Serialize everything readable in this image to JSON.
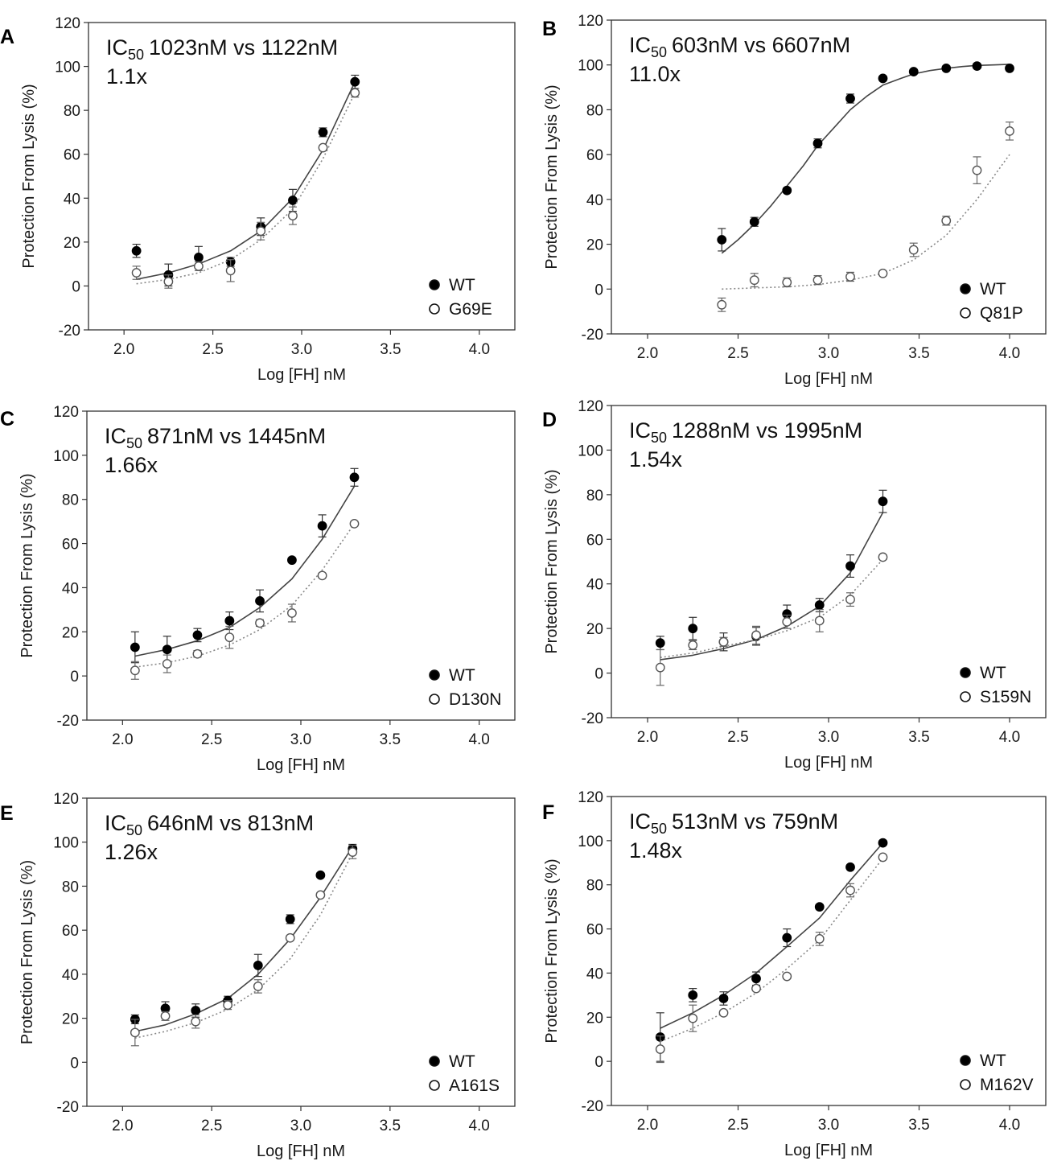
{
  "chart_data": [
    {
      "panel": "A",
      "type": "scatter",
      "ic_prefix": "IC",
      "ic_sub": "50",
      "ic_text": "1023nM vs 1122nM",
      "fold": "1.1x",
      "xlabel": "Log [FH] nM",
      "ylabel": "Protection From Lysis (%)",
      "xlim": [
        1.8,
        4.2
      ],
      "ylim": [
        -20,
        120
      ],
      "xticks": [
        "2.0",
        "2.5",
        "3.0",
        "3.5",
        "4.0"
      ],
      "yticks": [
        "-20",
        "0",
        "20",
        "40",
        "60",
        "80",
        "100",
        "120"
      ],
      "legend": "bottom-right",
      "series": [
        {
          "name": "WT",
          "marker": "filled",
          "line": "solid",
          "x": [
            2.07,
            2.25,
            2.42,
            2.6,
            2.77,
            2.95,
            3.12,
            3.3
          ],
          "y": [
            16,
            5,
            13,
            11,
            27,
            39,
            70,
            93
          ],
          "err": [
            3,
            5,
            5,
            2,
            4,
            5,
            2,
            3
          ],
          "fit_x": [
            2.07,
            2.25,
            2.42,
            2.6,
            2.77,
            2.95,
            3.12,
            3.3
          ],
          "fit_y": [
            3,
            6,
            10,
            16,
            25,
            40,
            62,
            93
          ]
        },
        {
          "name": "G69E",
          "marker": "open",
          "line": "dotted",
          "x": [
            2.07,
            2.25,
            2.42,
            2.6,
            2.77,
            2.95,
            3.12,
            3.3
          ],
          "y": [
            6,
            2,
            9,
            7,
            25,
            32,
            63,
            88
          ],
          "err": [
            3,
            3,
            2,
            5,
            4,
            4,
            1,
            2
          ],
          "fit_x": [
            2.07,
            2.25,
            2.42,
            2.6,
            2.77,
            2.95,
            3.12,
            3.3
          ],
          "fit_y": [
            1,
            3,
            6,
            12,
            21,
            35,
            58,
            88
          ]
        }
      ]
    },
    {
      "panel": "B",
      "type": "scatter",
      "ic_prefix": "IC",
      "ic_sub": "50",
      "ic_text": "603nM vs 6607nM",
      "fold": "11.0x",
      "xlabel": "Log [FH] nM",
      "ylabel": "Protection From Lysis (%)",
      "xlim": [
        1.8,
        4.2
      ],
      "ylim": [
        -20,
        120
      ],
      "xticks": [
        "2.0",
        "2.5",
        "3.0",
        "3.5",
        "4.0"
      ],
      "yticks": [
        "-20",
        "0",
        "20",
        "40",
        "60",
        "80",
        "100",
        "120"
      ],
      "legend": "bottom-right",
      "series": [
        {
          "name": "WT",
          "marker": "filled",
          "line": "solid",
          "x": [
            2.41,
            2.59,
            2.77,
            2.94,
            3.12,
            3.3,
            3.47,
            3.65,
            3.82,
            4.0
          ],
          "y": [
            22,
            30,
            44,
            65,
            85,
            94,
            97,
            98.5,
            99.5,
            98.5
          ],
          "err": [
            5,
            2,
            1,
            2,
            2,
            1,
            1,
            1,
            1,
            1
          ],
          "fit_x": [
            2.41,
            2.5,
            2.59,
            2.68,
            2.77,
            2.86,
            2.94,
            3.03,
            3.12,
            3.21,
            3.3,
            3.4,
            3.47,
            3.56,
            3.65,
            3.74,
            3.82,
            3.91,
            4.0
          ],
          "fit_y": [
            16,
            22,
            29,
            37,
            46,
            55,
            64,
            72,
            80,
            86,
            91,
            94,
            96,
            97.5,
            98.5,
            99.3,
            99.8,
            100,
            100.3
          ]
        },
        {
          "name": "Q81P",
          "marker": "open",
          "line": "dotted",
          "x": [
            2.41,
            2.59,
            2.77,
            2.94,
            3.12,
            3.3,
            3.47,
            3.65,
            3.82,
            4.0
          ],
          "y": [
            -7,
            4,
            3,
            4,
            5.5,
            7,
            17.5,
            30.5,
            53,
            70.5
          ],
          "err": [
            3,
            3,
            2,
            2,
            2,
            1,
            3,
            2,
            6,
            4
          ],
          "fit_x": [
            2.41,
            2.59,
            2.77,
            2.94,
            3.12,
            3.3,
            3.47,
            3.65,
            3.82,
            4.0
          ],
          "fit_y": [
            0,
            0.5,
            1,
            2,
            4,
            7,
            13,
            24,
            40,
            60
          ]
        }
      ]
    },
    {
      "panel": "C",
      "type": "scatter",
      "ic_prefix": "IC",
      "ic_sub": "50",
      "ic_text": "871nM vs 1445nM",
      "fold": "1.66x",
      "xlabel": "Log [FH] nM",
      "ylabel": "Protection From Lysis (%)",
      "xlim": [
        1.8,
        4.2
      ],
      "ylim": [
        -20,
        120
      ],
      "xticks": [
        "2.0",
        "2.5",
        "3.0",
        "3.5",
        "4.0"
      ],
      "yticks": [
        "-20",
        "0",
        "20",
        "40",
        "60",
        "80",
        "100",
        "120"
      ],
      "legend": "bottom-right",
      "series": [
        {
          "name": "WT",
          "marker": "filled",
          "line": "solid",
          "x": [
            2.07,
            2.25,
            2.42,
            2.6,
            2.77,
            2.95,
            3.12,
            3.3
          ],
          "y": [
            13,
            12,
            18.5,
            25,
            34,
            52.5,
            68,
            90
          ],
          "err": [
            7,
            6,
            3,
            4,
            5,
            1,
            5,
            4
          ],
          "fit_x": [
            2.07,
            2.25,
            2.42,
            2.6,
            2.77,
            2.95,
            3.12,
            3.3
          ],
          "fit_y": [
            9,
            12,
            16,
            22,
            31,
            44,
            62,
            86
          ]
        },
        {
          "name": "D130N",
          "marker": "open",
          "line": "dotted",
          "x": [
            2.07,
            2.25,
            2.42,
            2.6,
            2.77,
            2.95,
            3.12,
            3.3
          ],
          "y": [
            2.5,
            5.5,
            10,
            17.5,
            24,
            28.5,
            45.5,
            69
          ],
          "err": [
            4,
            4,
            1.5,
            5,
            1.5,
            4,
            1,
            1
          ],
          "fit_x": [
            2.07,
            2.25,
            2.42,
            2.6,
            2.77,
            2.95,
            3.12,
            3.3
          ],
          "fit_y": [
            4,
            6,
            9,
            14,
            21,
            32,
            48,
            69
          ]
        }
      ]
    },
    {
      "panel": "D",
      "type": "scatter",
      "ic_prefix": "IC",
      "ic_sub": "50",
      "ic_text": "1288nM vs 1995nM",
      "fold": "1.54x",
      "xlabel": "Log [FH] nM",
      "ylabel": "Protection From Lysis (%)",
      "xlim": [
        1.8,
        4.2
      ],
      "ylim": [
        -20,
        120
      ],
      "xticks": [
        "2.0",
        "2.5",
        "3.0",
        "3.5",
        "4.0"
      ],
      "yticks": [
        "-20",
        "0",
        "20",
        "40",
        "60",
        "80",
        "100",
        "120"
      ],
      "legend": "bottom-right",
      "series": [
        {
          "name": "WT",
          "marker": "filled",
          "line": "solid",
          "x": [
            2.07,
            2.25,
            2.42,
            2.6,
            2.77,
            2.95,
            3.12,
            3.3
          ],
          "y": [
            13.5,
            20,
            14,
            16.5,
            26.5,
            30.5,
            48,
            77
          ],
          "err": [
            3,
            5,
            4,
            4,
            4,
            3,
            5,
            5
          ],
          "fit_x": [
            2.07,
            2.25,
            2.42,
            2.6,
            2.77,
            2.95,
            3.12,
            3.3
          ],
          "fit_y": [
            6,
            8,
            11,
            15,
            21,
            30,
            45,
            72
          ]
        },
        {
          "name": "S159N",
          "marker": "open",
          "line": "dotted",
          "x": [
            2.07,
            2.25,
            2.42,
            2.6,
            2.77,
            2.95,
            3.12,
            3.3
          ],
          "y": [
            2.5,
            12.5,
            14,
            17,
            23,
            23.5,
            33,
            52
          ],
          "err": [
            8,
            2,
            2,
            4,
            3,
            5,
            3,
            1
          ],
          "fit_x": [
            2.07,
            2.25,
            2.42,
            2.6,
            2.77,
            2.95,
            3.12,
            3.3
          ],
          "fit_y": [
            7,
            9,
            12,
            15,
            19,
            25,
            35,
            51
          ]
        }
      ]
    },
    {
      "panel": "E",
      "type": "scatter",
      "ic_prefix": "IC",
      "ic_sub": "50",
      "ic_text": "646nM vs 813nM",
      "fold": "1.26x",
      "xlabel": "Log [FH] nM",
      "ylabel": "Protection From Lysis (%)",
      "xlim": [
        1.8,
        4.2
      ],
      "ylim": [
        -20,
        120
      ],
      "xticks": [
        "2.0",
        "2.5",
        "3.0",
        "3.5",
        "4.0"
      ],
      "yticks": [
        "-20",
        "0",
        "20",
        "40",
        "60",
        "80",
        "100",
        "120"
      ],
      "legend": "bottom-right",
      "series": [
        {
          "name": "WT",
          "marker": "filled",
          "line": "solid",
          "x": [
            2.07,
            2.24,
            2.41,
            2.59,
            2.76,
            2.94,
            3.11,
            3.29
          ],
          "y": [
            19.5,
            24.5,
            23.5,
            28,
            44,
            65,
            85,
            97
          ],
          "err": [
            2,
            3,
            3,
            2,
            5,
            2,
            1,
            2
          ],
          "fit_x": [
            2.07,
            2.24,
            2.41,
            2.59,
            2.76,
            2.94,
            3.11,
            3.29
          ],
          "fit_y": [
            14,
            17,
            22,
            29,
            40,
            56,
            75,
            98
          ]
        },
        {
          "name": "A161S",
          "marker": "open",
          "line": "dotted",
          "x": [
            2.07,
            2.24,
            2.41,
            2.59,
            2.76,
            2.94,
            3.11,
            3.29
          ],
          "y": [
            13.5,
            21,
            18.5,
            26,
            34.5,
            56.5,
            76,
            95.5
          ],
          "err": [
            6,
            2,
            3,
            2,
            3,
            1,
            1,
            3
          ],
          "fit_x": [
            2.07,
            2.24,
            2.41,
            2.59,
            2.76,
            2.94,
            3.11,
            3.29
          ],
          "fit_y": [
            11,
            14,
            18,
            24,
            33,
            47,
            67,
            95
          ]
        }
      ]
    },
    {
      "panel": "F",
      "type": "scatter",
      "ic_prefix": "IC",
      "ic_sub": "50",
      "ic_text": "513nM vs 759nM",
      "fold": "1.48x",
      "xlabel": "Log [FH] nM",
      "ylabel": "Protection From Lysis (%)",
      "xlim": [
        1.8,
        4.2
      ],
      "ylim": [
        -20,
        120
      ],
      "xticks": [
        "2.0",
        "2.5",
        "3.0",
        "3.5",
        "4.0"
      ],
      "yticks": [
        "-20",
        "0",
        "20",
        "40",
        "60",
        "80",
        "100",
        "120"
      ],
      "legend": "bottom-right",
      "series": [
        {
          "name": "WT",
          "marker": "filled",
          "line": "solid",
          "x": [
            2.07,
            2.25,
            2.42,
            2.6,
            2.77,
            2.95,
            3.12,
            3.3
          ],
          "y": [
            11,
            30,
            28.5,
            37.5,
            56,
            70,
            88,
            99
          ],
          "err": [
            11,
            3,
            3,
            3,
            4,
            1,
            1,
            1
          ],
          "fit_x": [
            2.07,
            2.25,
            2.42,
            2.6,
            2.77,
            2.95,
            3.12,
            3.3
          ],
          "fit_y": [
            15,
            22,
            30,
            40,
            52,
            65,
            82,
            99
          ]
        },
        {
          "name": "M162V",
          "marker": "open",
          "line": "dotted",
          "x": [
            2.07,
            2.25,
            2.42,
            2.6,
            2.77,
            2.95,
            3.12,
            3.3
          ],
          "y": [
            5.5,
            19.5,
            22,
            33,
            38.5,
            55.5,
            77.5,
            92.5
          ],
          "err": [
            6,
            6,
            1,
            1,
            1,
            3,
            3,
            1
          ],
          "fit_x": [
            2.07,
            2.25,
            2.42,
            2.6,
            2.77,
            2.95,
            3.12,
            3.3
          ],
          "fit_y": [
            9,
            15,
            22,
            31,
            42,
            55,
            73,
            92
          ]
        }
      ]
    }
  ]
}
